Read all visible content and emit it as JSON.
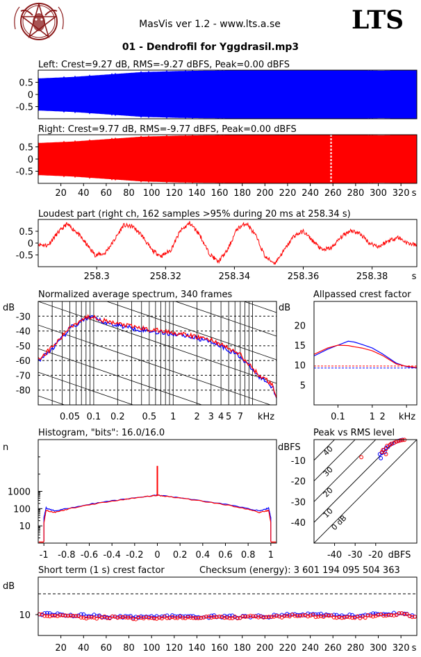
{
  "header": {
    "app_title": "MasVis ver 1.2 - www.lts.a.se",
    "brand": "LTS",
    "file_title": "01 - Dendrofil for Yggdrasil.mp3"
  },
  "colors": {
    "left": "#0000ff",
    "right": "#ff0000",
    "grid": "#000000",
    "background": "#ffffff"
  },
  "logo": {
    "icon": "pentagram-goat-logo-icon"
  },
  "chart_data": [
    {
      "id": "left-waveform",
      "type": "area",
      "title": "Left: Crest=9.27 dB, RMS=-9.27 dBFS, Peak=0.00 dBFS",
      "yticks": [
        "0.5",
        "0",
        "-0.5"
      ],
      "ylim": [
        -1,
        1
      ],
      "xlim": [
        0,
        334
      ],
      "series": [
        {
          "values": [
            0.66,
            0.72,
            0.82,
            0.92,
            0.96,
            0.98,
            0.99,
            1.0,
            1.0,
            0.99,
            0.98,
            1.0
          ]
        }
      ]
    },
    {
      "id": "right-waveform",
      "type": "area",
      "title": "Right: Crest=9.77 dB, RMS=-9.77 dBFS, Peak=0.00 dBFS",
      "yticks": [
        "0.5",
        "0",
        "-0.5"
      ],
      "ylim": [
        -1,
        1
      ],
      "xticks": [
        "20",
        "40",
        "60",
        "80",
        "100",
        "120",
        "140",
        "160",
        "180",
        "200",
        "220",
        "240",
        "260",
        "280",
        "300",
        "320",
        "s"
      ],
      "xlim": [
        0,
        334
      ],
      "marker_x": 258.34,
      "series": [
        {
          "values": [
            0.66,
            0.72,
            0.82,
            0.92,
            0.96,
            0.98,
            0.99,
            1.0,
            1.0,
            0.99,
            0.98,
            1.0
          ]
        }
      ]
    },
    {
      "id": "loudest-part",
      "type": "line",
      "title": "Loudest part (right ch, 162 samples >95% during 20 ms at 258.34 s)",
      "yticks": [
        "0.5",
        "0",
        "-0.5"
      ],
      "ylim": [
        -1,
        1
      ],
      "xticks": [
        "258.3",
        "258.32",
        "258.34",
        "258.36",
        "258.38",
        "s"
      ],
      "xlim": [
        258.283,
        258.393
      ],
      "series": [
        {
          "values": [
            -0.05,
            -0.1,
            0.4,
            0.8,
            0.5,
            0.0,
            -0.5,
            -0.45,
            0.1,
            0.75,
            0.7,
            0.3,
            -0.3,
            -0.55,
            -0.3,
            0.5,
            0.85,
            0.4,
            -0.4,
            -0.8,
            -0.3,
            0.6,
            0.85,
            0.3,
            -0.6,
            -0.85,
            -0.3,
            0.3,
            0.5,
            0.1,
            -0.3,
            -0.2,
            0.25,
            0.55,
            0.4,
            0.0,
            -0.15,
            0.1,
            0.25,
            0.0,
            -0.1
          ]
        }
      ]
    },
    {
      "id": "average-spectrum",
      "type": "line",
      "title": "Normalized average spectrum, 340 frames",
      "ylabel": "dB",
      "yticks": [
        "-30",
        "-40",
        "-50",
        "-60",
        "-70",
        "-80"
      ],
      "xticks": [
        "0.05",
        "0.1",
        "0.2",
        "0.5",
        "1",
        "2",
        "3",
        "4",
        "5",
        "7",
        "kHz"
      ],
      "xlim": [
        0.02,
        20
      ],
      "ylim": [
        -90,
        -20
      ],
      "series": [
        {
          "x": [
            0.02,
            0.025,
            0.03,
            0.04,
            0.05,
            0.06,
            0.07,
            0.08,
            0.1,
            0.12,
            0.15,
            0.2,
            0.3,
            0.5,
            0.7,
            1,
            1.5,
            2,
            3,
            4,
            5,
            6,
            7,
            8,
            10,
            12,
            15,
            18,
            20
          ],
          "values": [
            -60,
            -56,
            -52,
            -45,
            -38,
            -36,
            -33,
            -32,
            -31,
            -33,
            -35,
            -36,
            -38,
            -40,
            -41,
            -42,
            -43,
            -45,
            -47,
            -50,
            -53,
            -55,
            -57,
            -61,
            -66,
            -71,
            -74,
            -78,
            -85
          ]
        },
        {
          "x": [
            0.02,
            0.025,
            0.03,
            0.04,
            0.05,
            0.06,
            0.07,
            0.08,
            0.1,
            0.12,
            0.15,
            0.2,
            0.3,
            0.5,
            0.7,
            1,
            1.5,
            2,
            3,
            4,
            5,
            6,
            7,
            8,
            10,
            12,
            15,
            18,
            20
          ],
          "values": [
            -59,
            -55,
            -51,
            -44,
            -37,
            -35,
            -32,
            -31,
            -30,
            -32,
            -34,
            -35,
            -37,
            -39,
            -40,
            -41,
            -43,
            -44,
            -46,
            -49,
            -52,
            -54,
            -56,
            -60,
            -65,
            -70,
            -73,
            -77,
            -84
          ]
        }
      ]
    },
    {
      "id": "allpassed-crest",
      "type": "line",
      "title": "Allpassed crest factor",
      "ylabel": "dB",
      "yticks": [
        "20",
        "15",
        "10",
        "5"
      ],
      "xticks": [
        "0.1",
        "1",
        "2",
        "kHz"
      ],
      "xlim": [
        0.02,
        20
      ],
      "ylim": [
        0,
        26
      ],
      "reference": [
        9.27,
        9.77
      ],
      "series": [
        {
          "x": [
            0.02,
            0.05,
            0.1,
            0.2,
            0.3,
            0.5,
            1,
            2,
            5,
            10,
            20
          ],
          "values": [
            12.3,
            14.0,
            15.0,
            16.0,
            15.8,
            15.2,
            14.3,
            12.8,
            10.5,
            9.6,
            9.3
          ]
        },
        {
          "x": [
            0.02,
            0.05,
            0.1,
            0.2,
            0.3,
            0.5,
            1,
            2,
            5,
            10,
            20
          ],
          "values": [
            12.7,
            14.3,
            15.0,
            14.9,
            14.6,
            14.3,
            13.6,
            12.4,
            10.3,
            9.7,
            9.4
          ]
        }
      ]
    },
    {
      "id": "histogram",
      "type": "line",
      "title": "Histogram, \"bits\": 16.0/16.0",
      "ylabel": "n",
      "yticks": [
        "1000",
        "100",
        "10"
      ],
      "xticks": [
        "-1",
        "-0.8",
        "-0.6",
        "-0.4",
        "-0.2",
        "0",
        "0.2",
        "0.4",
        "0.6",
        "0.8",
        "1"
      ],
      "xlim": [
        -1.05,
        1.05
      ],
      "ylim": [
        1,
        1000000
      ],
      "spike_x": 0,
      "spike_y": 30000,
      "series": [
        {
          "x": [
            -1,
            -0.98,
            -0.95,
            -0.9,
            -0.8,
            -0.6,
            -0.4,
            -0.2,
            -0.05,
            0,
            0.05,
            0.2,
            0.4,
            0.6,
            0.8,
            0.9,
            0.95,
            0.98,
            1
          ],
          "values": [
            30,
            110,
            90,
            75,
            100,
            180,
            280,
            420,
            560,
            600,
            560,
            420,
            280,
            180,
            100,
            75,
            90,
            110,
            30
          ]
        },
        {
          "x": [
            -1,
            -0.98,
            -0.95,
            -0.9,
            -0.8,
            -0.6,
            -0.4,
            -0.2,
            -0.05,
            0,
            0.05,
            0.2,
            0.4,
            0.6,
            0.8,
            0.9,
            0.95,
            0.98,
            1
          ],
          "values": [
            15,
            80,
            70,
            60,
            90,
            170,
            270,
            410,
            550,
            590,
            550,
            410,
            270,
            170,
            90,
            60,
            70,
            80,
            15
          ]
        }
      ]
    },
    {
      "id": "peak-vs-rms",
      "type": "scatter",
      "title": "Peak vs RMS level",
      "ylabel": "dBFS",
      "yticks": [
        "-10",
        "-20",
        "-30",
        "-40"
      ],
      "xticks": [
        "-40",
        "-30",
        "-20",
        "dBFS"
      ],
      "diag_labels": [
        "40",
        "30",
        "20",
        "10",
        "0 dB"
      ],
      "xlim": [
        -50,
        0
      ],
      "ylim": [
        -50,
        0
      ],
      "series": [
        {
          "x": [
            -18,
            -17,
            -16,
            -15,
            -14,
            -13,
            -12,
            -11,
            -10,
            -9,
            -8,
            -7,
            -17.5,
            -15.5
          ],
          "values": [
            -7,
            -6.5,
            -5,
            -4,
            -3.5,
            -2.5,
            -2,
            -1.5,
            -1,
            -0.6,
            -0.3,
            -0.1,
            -9,
            -6
          ]
        },
        {
          "x": [
            -17,
            -16.5,
            -15,
            -14.5,
            -13,
            -12.5,
            -11,
            -10,
            -9,
            -8,
            -7,
            -6,
            -27,
            -15
          ],
          "values": [
            -6,
            -5,
            -4.5,
            -3,
            -2.5,
            -2,
            -1.5,
            -1,
            -0.7,
            -0.4,
            -0.2,
            -0.1,
            -8.5,
            -7
          ]
        }
      ]
    },
    {
      "id": "short-term-crest",
      "type": "scatter",
      "title": "Short term (1 s) crest factor",
      "checksum": "Checksum (energy):  3 601 194 095 504 363",
      "ylabel": "dB",
      "yticks": [
        "10"
      ],
      "xticks": [
        "20",
        "40",
        "60",
        "80",
        "100",
        "120",
        "140",
        "160",
        "180",
        "200",
        "220",
        "240",
        "260",
        "280",
        "300",
        "320",
        "s"
      ],
      "xlim": [
        0,
        334
      ],
      "ylim": [
        0,
        28
      ],
      "reference": 20,
      "series": [
        {
          "x": [
            2,
            10,
            20,
            30,
            40,
            60,
            80,
            100,
            120,
            140,
            160,
            180,
            200,
            220,
            240,
            260,
            280,
            300,
            320,
            332
          ],
          "values": [
            10.2,
            10.5,
            10.3,
            9.3,
            9.7,
            9.2,
            8.8,
            9.1,
            9.2,
            8.7,
            9.3,
            8.9,
            9.1,
            9.8,
            10.3,
            9.6,
            9.4,
            10.7,
            10.2,
            9.5
          ]
        },
        {
          "x": [
            4,
            14,
            24,
            34,
            44,
            64,
            84,
            104,
            124,
            144,
            164,
            184,
            204,
            224,
            244,
            264,
            284,
            304,
            324,
            330
          ],
          "values": [
            9.8,
            9.6,
            9.1,
            9.0,
            8.6,
            8.7,
            8.3,
            8.5,
            8.4,
            8.8,
            8.5,
            8.9,
            8.8,
            9.5,
            9.4,
            9.1,
            8.8,
            9.9,
            10.5,
            9.2
          ]
        }
      ]
    }
  ]
}
